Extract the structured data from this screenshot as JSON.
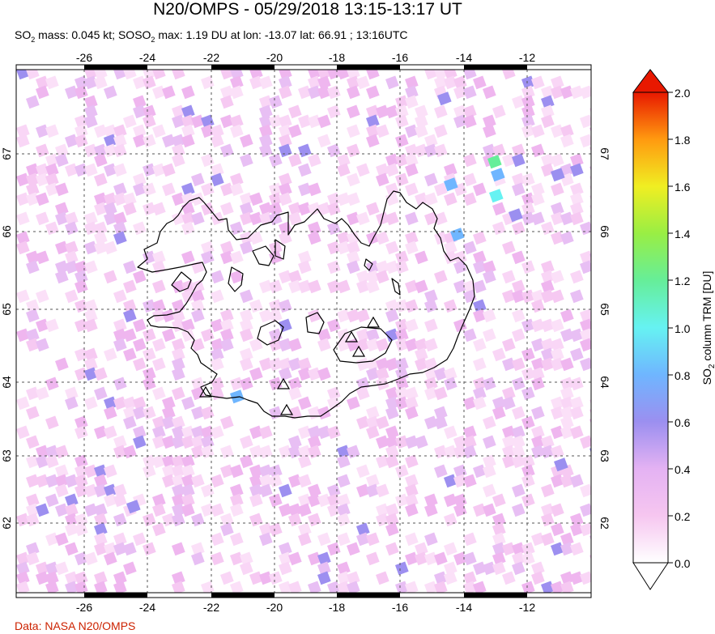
{
  "title": "N20/OMPS - 05/29/2018 13:15-13:17 UT",
  "subtitle": {
    "so2_label": "SO",
    "sub_2": "2",
    "mass_text": " mass: 0.045 kt; SO",
    "max_text": " max: 1.19 DU at lon: -13.07 lat: 66.91 ; 13:16UTC"
  },
  "credit": "Data: NASA N20/OMPS",
  "map": {
    "lon_labels": [
      "-26",
      "-24",
      "-22",
      "-20",
      "-18",
      "-16",
      "-14",
      "-12"
    ],
    "lat_labels": [
      "67",
      "66",
      "65",
      "64",
      "63",
      "62"
    ],
    "volcano_markers": 6,
    "colors": {
      "frame": "#000000",
      "grid": "#555555",
      "coast": "#000000"
    }
  },
  "colorbar": {
    "ticks": [
      "2.0",
      "1.8",
      "1.6",
      "1.4",
      "1.2",
      "1.0",
      "0.8",
      "0.6",
      "0.4",
      "0.2",
      "0.0"
    ],
    "label_prefix": "SO",
    "label_sub": "2",
    "label_suffix": " column TRM [DU]",
    "colors": [
      "#ffffff",
      "#f6c6f0",
      "#d9a8f2",
      "#9b8ff0",
      "#6fb6ff",
      "#66f2f2",
      "#66ee88",
      "#ccf033",
      "#ffd21a",
      "#ff7a0a",
      "#e81800"
    ]
  }
}
